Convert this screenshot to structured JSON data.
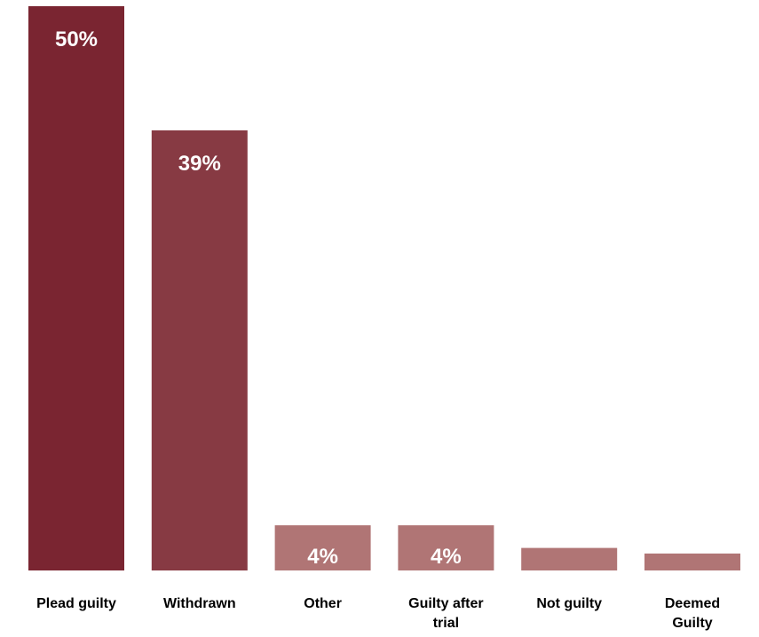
{
  "chart_data": {
    "type": "bar",
    "title": "",
    "xlabel": "",
    "ylabel": "",
    "ylim": [
      0,
      50
    ],
    "grid": false,
    "categories": [
      "Plead guilty",
      "Withdrawn",
      "Other",
      "Guilty after trial",
      "Not guilty",
      "Deemed Guilty"
    ],
    "category_lines": [
      [
        "Plead guilty"
      ],
      [
        "Withdrawn"
      ],
      [
        "Other"
      ],
      [
        "Guilty after",
        "trial"
      ],
      [
        "Not guilty"
      ],
      [
        "Deemed",
        "Guilty"
      ]
    ],
    "values": [
      50,
      39,
      4,
      4,
      2,
      1.5
    ],
    "data_labels": [
      "50%",
      "39%",
      "4%",
      "4%",
      "",
      ""
    ],
    "colors": [
      "#7a2531",
      "#873a43",
      "#b07575",
      "#b07575",
      "#b07575",
      "#b07575"
    ]
  }
}
